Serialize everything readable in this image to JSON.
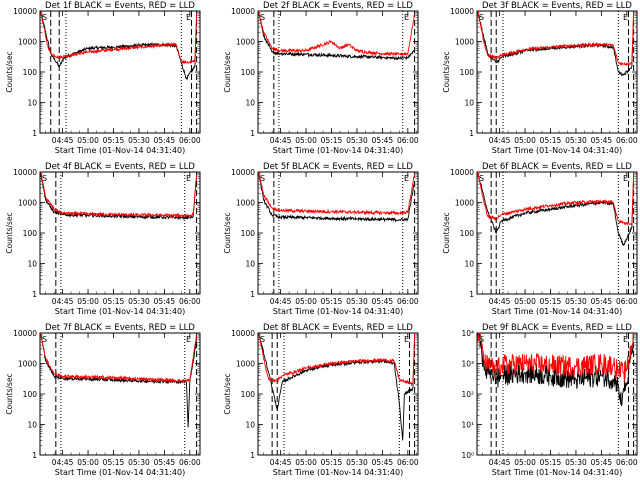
{
  "chart_data": [
    {
      "type": "line",
      "title": "Det 1f BLACK = Events, RED = LLD",
      "xlabel": "Start Time (01-Nov-14 04:31:40)",
      "ylabel": "Counts/sec",
      "y_scale": "log",
      "ylim": [
        1,
        10000
      ],
      "x_ticks": [
        "04:45",
        "05:00",
        "05:15",
        "05:30",
        "05:45",
        "06:00"
      ],
      "y_ticks": [
        "1",
        "10",
        "100",
        "1000",
        "10000"
      ],
      "grid": false,
      "legend": "none",
      "colors": {
        "events": "#000000",
        "lld": "#ff0000"
      },
      "markers": {
        "dashed": [
          "04:38",
          "04:43",
          "06:01",
          "06:04"
        ],
        "dotted": [
          "04:47",
          "05:55"
        ]
      },
      "series": [
        {
          "name": "BLACK = Events",
          "x": [
            "04:32",
            "04:38",
            "04:43",
            "04:46",
            "05:00",
            "05:15",
            "05:30",
            "05:45",
            "05:52",
            "05:55",
            "05:58",
            "06:03",
            "06:04"
          ],
          "values": [
            10000,
            400,
            150,
            300,
            600,
            650,
            750,
            800,
            700,
            200,
            60,
            150,
            8000
          ]
        },
        {
          "name": "RED = LLD",
          "x": [
            "04:32",
            "04:36",
            "04:38",
            "04:43",
            "04:46",
            "05:00",
            "05:15",
            "05:30",
            "05:45",
            "05:52",
            "05:55",
            "05:58",
            "06:03",
            "06:04"
          ],
          "values": [
            10000,
            800,
            400,
            300,
            330,
            450,
            550,
            650,
            750,
            800,
            220,
            200,
            220,
            9000
          ]
        }
      ]
    },
    {
      "type": "line",
      "title": "Det 2f BLACK = Events, RED = LLD",
      "xlabel": "Start Time (01-Nov-14 04:31:40)",
      "ylabel": "Counts/sec",
      "y_scale": "log",
      "ylim": [
        1,
        10000
      ],
      "x_ticks": [
        "04:45",
        "05:00",
        "05:15",
        "05:30",
        "05:45",
        "06:00"
      ],
      "y_ticks": [
        "1",
        "10",
        "100",
        "1000",
        "10000"
      ],
      "grid": false,
      "legend": "none",
      "colors": {
        "events": "#000000",
        "lld": "#ff0000"
      },
      "markers": {
        "dashed": [
          "04:41",
          "06:04"
        ],
        "dotted": [
          "04:44",
          "05:57"
        ]
      },
      "series": [
        {
          "name": "BLACK = Events",
          "x": [
            "04:32",
            "04:35",
            "04:40",
            "04:45",
            "05:00",
            "05:15",
            "05:30",
            "05:45",
            "05:55",
            "06:00",
            "06:04"
          ],
          "values": [
            10000,
            1500,
            450,
            400,
            380,
            350,
            320,
            300,
            280,
            300,
            500
          ]
        },
        {
          "name": "RED = LLD",
          "x": [
            "04:32",
            "04:35",
            "04:40",
            "04:45",
            "05:00",
            "05:15",
            "05:20",
            "05:25",
            "05:30",
            "05:35",
            "05:45",
            "05:55",
            "06:00",
            "06:04"
          ],
          "values": [
            10000,
            2000,
            600,
            500,
            500,
            1000,
            600,
            800,
            500,
            450,
            400,
            380,
            400,
            8000
          ]
        }
      ]
    },
    {
      "type": "line",
      "title": "Det 3f BLACK = Events, RED = LLD",
      "xlabel": "Start Time (01-Nov-14 04:31:40)",
      "ylabel": "Counts/sec",
      "y_scale": "log",
      "ylim": [
        1,
        10000
      ],
      "x_ticks": [
        "04:45",
        "05:00",
        "05:15",
        "05:30",
        "05:45",
        "06:00"
      ],
      "y_ticks": [
        "1",
        "10",
        "100",
        "1000",
        "10000"
      ],
      "grid": false,
      "legend": "none",
      "colors": {
        "events": "#000000",
        "lld": "#ff0000"
      },
      "markers": {
        "dashed": [
          "04:40",
          "04:43",
          "06:01",
          "06:04"
        ],
        "dotted": [
          "04:47",
          "05:55"
        ]
      },
      "series": [
        {
          "name": "BLACK = Events",
          "x": [
            "04:32",
            "04:38",
            "04:43",
            "04:46",
            "05:00",
            "05:15",
            "05:30",
            "05:45",
            "05:52",
            "05:55",
            "05:58",
            "06:03",
            "06:04"
          ],
          "values": [
            10000,
            400,
            200,
            300,
            500,
            600,
            700,
            750,
            650,
            100,
            80,
            150,
            8000
          ]
        },
        {
          "name": "RED = LLD",
          "x": [
            "04:32",
            "04:36",
            "04:38",
            "04:43",
            "04:46",
            "05:00",
            "05:15",
            "05:30",
            "05:45",
            "05:52",
            "05:55",
            "05:58",
            "06:03",
            "06:04"
          ],
          "values": [
            10000,
            800,
            350,
            300,
            350,
            550,
            650,
            750,
            800,
            750,
            200,
            180,
            200,
            9000
          ]
        }
      ]
    },
    {
      "type": "line",
      "title": "Det 4f BLACK = Events, RED = LLD",
      "xlabel": "Start Time (01-Nov-14 04:31:40)",
      "ylabel": "Counts/sec",
      "y_scale": "log",
      "ylim": [
        1,
        10000
      ],
      "x_ticks": [
        "04:45",
        "05:00",
        "05:15",
        "05:30",
        "05:45",
        "06:00"
      ],
      "y_ticks": [
        "1",
        "10",
        "100",
        "1000",
        "10000"
      ],
      "grid": false,
      "legend": "none",
      "colors": {
        "events": "#000000",
        "lld": "#ff0000"
      },
      "markers": {
        "dashed": [
          "04:41",
          "06:04"
        ],
        "dotted": [
          "04:44",
          "05:57"
        ]
      },
      "series": [
        {
          "name": "BLACK = Events",
          "x": [
            "04:32",
            "04:35",
            "04:40",
            "04:45",
            "05:00",
            "05:15",
            "05:30",
            "05:45",
            "05:55",
            "06:00",
            "06:02",
            "06:04"
          ],
          "values": [
            10000,
            1200,
            480,
            400,
            380,
            360,
            340,
            330,
            320,
            330,
            340,
            8000
          ]
        },
        {
          "name": "RED = LLD",
          "x": [
            "04:32",
            "04:35",
            "04:40",
            "04:45",
            "05:00",
            "05:15",
            "05:30",
            "05:45",
            "05:55",
            "06:00",
            "06:02",
            "06:04"
          ],
          "values": [
            10000,
            1500,
            600,
            450,
            420,
            400,
            390,
            380,
            370,
            380,
            400,
            9000
          ]
        }
      ]
    },
    {
      "type": "line",
      "title": "Det 5f BLACK = Events, RED = LLD",
      "xlabel": "Start Time (01-Nov-14 04:31:40)",
      "ylabel": "Counts/sec",
      "y_scale": "log",
      "ylim": [
        1,
        10000
      ],
      "x_ticks": [
        "04:45",
        "05:00",
        "05:15",
        "05:30",
        "05:45",
        "06:00"
      ],
      "y_ticks": [
        "1",
        "10",
        "100",
        "1000",
        "10000"
      ],
      "grid": false,
      "legend": "none",
      "colors": {
        "events": "#000000",
        "lld": "#ff0000"
      },
      "markers": {
        "dashed": [
          "04:41",
          "06:04"
        ],
        "dotted": [
          "04:44",
          "05:57"
        ]
      },
      "series": [
        {
          "name": "BLACK = Events",
          "x": [
            "04:32",
            "04:35",
            "04:40",
            "04:45",
            "05:00",
            "05:15",
            "05:30",
            "05:45",
            "05:55",
            "06:00",
            "06:04"
          ],
          "values": [
            10000,
            1200,
            380,
            330,
            320,
            300,
            290,
            280,
            270,
            280,
            5000
          ]
        },
        {
          "name": "RED = LLD",
          "x": [
            "04:32",
            "04:35",
            "04:40",
            "04:45",
            "05:00",
            "05:15",
            "05:30",
            "05:45",
            "05:55",
            "06:00",
            "06:04"
          ],
          "values": [
            10000,
            1800,
            650,
            550,
            520,
            500,
            480,
            460,
            450,
            480,
            9000
          ]
        }
      ]
    },
    {
      "type": "line",
      "title": "Det 6f BLACK = Events, RED = LLD",
      "xlabel": "Start Time (01-Nov-14 04:31:40)",
      "ylabel": "Counts/sec",
      "y_scale": "log",
      "ylim": [
        1,
        10000
      ],
      "x_ticks": [
        "04:45",
        "05:00",
        "05:15",
        "05:30",
        "05:45",
        "06:00"
      ],
      "y_ticks": [
        "1",
        "10",
        "100",
        "1000",
        "10000"
      ],
      "grid": false,
      "legend": "none",
      "colors": {
        "events": "#000000",
        "lld": "#ff0000"
      },
      "markers": {
        "dashed": [
          "04:40",
          "04:43",
          "06:01",
          "06:04"
        ],
        "dotted": [
          "04:47",
          "05:55"
        ]
      },
      "series": [
        {
          "name": "BLACK = Events",
          "x": [
            "04:32",
            "04:38",
            "04:43",
            "04:46",
            "05:00",
            "05:15",
            "05:30",
            "05:45",
            "05:52",
            "05:55",
            "05:58",
            "06:03",
            "06:04"
          ],
          "values": [
            10000,
            500,
            100,
            250,
            450,
            600,
            800,
            1000,
            900,
            100,
            40,
            150,
            8000
          ]
        },
        {
          "name": "RED = LLD",
          "x": [
            "04:32",
            "04:36",
            "04:38",
            "04:43",
            "04:46",
            "05:00",
            "05:15",
            "05:30",
            "05:45",
            "05:52",
            "05:55",
            "05:58",
            "06:03",
            "06:04"
          ],
          "values": [
            10000,
            900,
            350,
            300,
            400,
            600,
            800,
            1000,
            1100,
            1000,
            250,
            220,
            200,
            9000
          ]
        }
      ]
    },
    {
      "type": "line",
      "title": "Det 7f BLACK = Events, RED = LLD",
      "xlabel": "Start Time (01-Nov-14 04:31:40)",
      "ylabel": "Counts/sec",
      "y_scale": "log",
      "ylim": [
        1,
        10000
      ],
      "x_ticks": [
        "04:45",
        "05:00",
        "05:15",
        "05:30",
        "05:45",
        "06:00"
      ],
      "y_ticks": [
        "1",
        "10",
        "100",
        "1000",
        "10000"
      ],
      "grid": false,
      "legend": "none",
      "colors": {
        "events": "#000000",
        "lld": "#ff0000"
      },
      "markers": {
        "dashed": [
          "04:41",
          "06:04"
        ],
        "dotted": [
          "04:44",
          "05:57"
        ]
      },
      "series": [
        {
          "name": "BLACK = Events",
          "x": [
            "04:32",
            "04:35",
            "04:40",
            "04:45",
            "05:00",
            "05:15",
            "05:30",
            "05:45",
            "05:55",
            "05:58",
            "05:59",
            "06:00",
            "06:04"
          ],
          "values": [
            10000,
            1200,
            380,
            330,
            310,
            290,
            270,
            260,
            250,
            250,
            8,
            250,
            6000
          ]
        },
        {
          "name": "RED = LLD",
          "x": [
            "04:32",
            "04:35",
            "04:40",
            "04:45",
            "05:00",
            "05:15",
            "05:30",
            "05:45",
            "05:55",
            "06:00",
            "06:04"
          ],
          "values": [
            10000,
            1500,
            450,
            380,
            360,
            340,
            310,
            290,
            270,
            280,
            9000
          ]
        }
      ]
    },
    {
      "type": "line",
      "title": "Det 8f BLACK = Events, RED = LLD",
      "xlabel": "Start Time (01-Nov-14 04:31:40)",
      "ylabel": "Counts/sec",
      "y_scale": "log",
      "ylim": [
        1,
        10000
      ],
      "x_ticks": [
        "04:45",
        "05:00",
        "05:15",
        "05:30",
        "05:45",
        "06:00"
      ],
      "y_ticks": [
        "1",
        "10",
        "100",
        "1000",
        "10000"
      ],
      "grid": false,
      "legend": "none",
      "colors": {
        "events": "#000000",
        "lld": "#ff0000"
      },
      "markers": {
        "dashed": [
          "04:40",
          "04:43",
          "06:01",
          "06:04"
        ],
        "dotted": [
          "04:47",
          "05:55"
        ]
      },
      "series": [
        {
          "name": "BLACK = Events",
          "x": [
            "04:32",
            "04:38",
            "04:43",
            "04:46",
            "05:00",
            "05:15",
            "05:30",
            "05:45",
            "05:52",
            "05:55",
            "05:57",
            "05:58",
            "06:03",
            "06:04"
          ],
          "values": [
            10000,
            500,
            30,
            250,
            600,
            900,
            1100,
            1200,
            1000,
            50,
            3,
            100,
            150,
            8000
          ]
        },
        {
          "name": "RED = LLD",
          "x": [
            "04:32",
            "04:36",
            "04:38",
            "04:43",
            "04:46",
            "05:00",
            "05:15",
            "05:30",
            "05:45",
            "05:52",
            "05:55",
            "05:58",
            "06:03",
            "06:04"
          ],
          "values": [
            10000,
            800,
            300,
            280,
            400,
            700,
            1000,
            1200,
            1300,
            1200,
            300,
            250,
            220,
            9000
          ]
        }
      ]
    },
    {
      "type": "line",
      "title": "Det 9f BLACK = Events, RED = LLD",
      "xlabel": "Start Time (01-Nov-14 04:31:40)",
      "ylabel": "",
      "y_scale": "log",
      "ylim": [
        1,
        10000
      ],
      "x_ticks": [
        "04:45",
        "05:00",
        "05:15",
        "05:30",
        "05:45",
        "06:00"
      ],
      "y_ticks": [
        "10⁰",
        "10¹",
        "10²",
        "10³",
        "10⁴"
      ],
      "grid": false,
      "legend": "none",
      "colors": {
        "events": "#000000",
        "lld": "#ff0000"
      },
      "markers": {
        "dashed": [
          "04:40",
          "04:43",
          "06:01",
          "06:04"
        ],
        "dotted": [
          "04:47",
          "05:55"
        ]
      },
      "series": [
        {
          "name": "BLACK = Events",
          "x": [
            "04:32",
            "04:34",
            "04:36",
            "04:40",
            "04:43",
            "04:46",
            "05:00",
            "05:15",
            "05:30",
            "05:45",
            "05:52",
            "05:55",
            "05:57",
            "05:58",
            "06:00",
            "06:04"
          ],
          "values": [
            10000,
            5000,
            600,
            600,
            300,
            400,
            500,
            400,
            300,
            400,
            300,
            200,
            40,
            150,
            200,
            6000
          ]
        },
        {
          "name": "RED = LLD",
          "x": [
            "04:32",
            "04:34",
            "04:36",
            "04:40",
            "04:43",
            "04:46",
            "05:00",
            "05:15",
            "05:30",
            "05:45",
            "05:52",
            "05:55",
            "05:58",
            "06:00",
            "06:04"
          ],
          "values": [
            10000,
            8000,
            1000,
            800,
            600,
            900,
            1000,
            900,
            800,
            1000,
            900,
            600,
            500,
            600,
            9000
          ]
        }
      ]
    }
  ]
}
